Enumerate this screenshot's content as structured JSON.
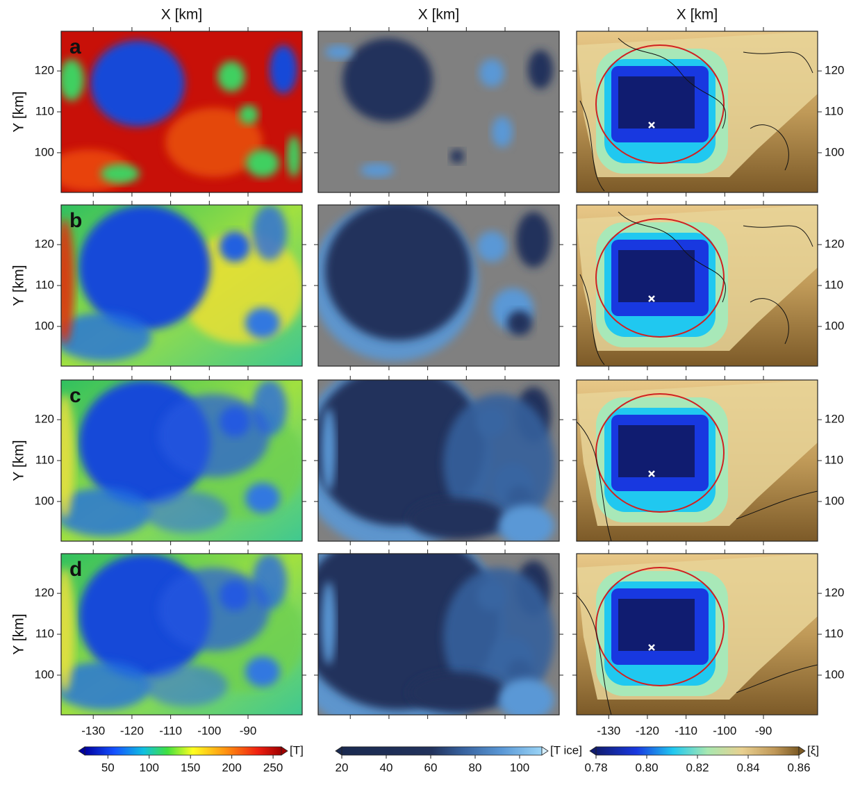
{
  "x_axis": {
    "label": "X [km]",
    "lim": [
      -138.3,
      -76
    ],
    "ticks": [
      -130,
      -120,
      -110,
      -100,
      -90
    ]
  },
  "y_axis": {
    "label": "Y [km]",
    "lim": [
      90.3,
      129.7
    ],
    "ticks": [
      100,
      110,
      120
    ]
  },
  "panel_labels": [
    "a",
    "b",
    "c",
    "d"
  ],
  "colorbars": [
    {
      "label": "[T]",
      "lim": [
        22,
        260
      ],
      "ticks": [
        50,
        100,
        150,
        200,
        250
      ]
    },
    {
      "label": "[T ice]",
      "lim": [
        20,
        110
      ],
      "ticks": [
        20,
        40,
        60,
        80,
        100
      ]
    },
    {
      "label": "[ξ]",
      "lim": [
        0.78,
        0.86
      ],
      "ticks": [
        0.78,
        {
          "value": 0.8,
          "label": "0.80"
        },
        0.82,
        0.84,
        0.86
      ]
    }
  ]
}
